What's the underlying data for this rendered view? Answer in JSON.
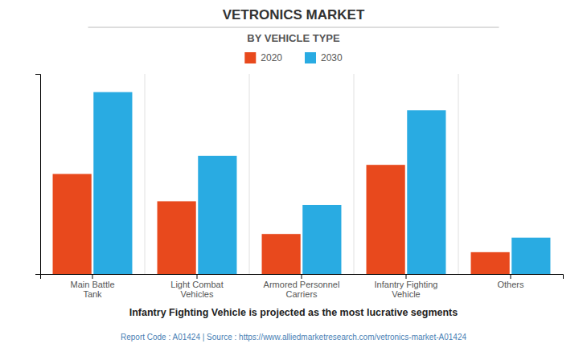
{
  "chart_data": {
    "type": "bar",
    "title": "VETRONICS MARKET",
    "subtitle": "BY VEHICLE TYPE",
    "categories": [
      "Main Battle\nTank",
      "Light Combat\nVehicles",
      "Armored Personnel\nCarriers",
      "Infantry Fighting\nVehicle",
      "Others"
    ],
    "series": [
      {
        "name": "2020",
        "color": "#E8491D",
        "values": [
          55,
          40,
          22,
          60,
          12
        ]
      },
      {
        "name": "2030",
        "color": "#29ABE2",
        "values": [
          100,
          65,
          38,
          90,
          20
        ]
      }
    ],
    "ylim": [
      0,
      110
    ],
    "grid": false,
    "tick_labels": "x",
    "legend": "top",
    "annotations": [
      "Infantry Fighting Vehicle is projected as the most lucrative segments",
      "Report Code : A01424  |  Source : https://www.alliedmarketresearch.com/vetronics-market-A01424"
    ]
  }
}
